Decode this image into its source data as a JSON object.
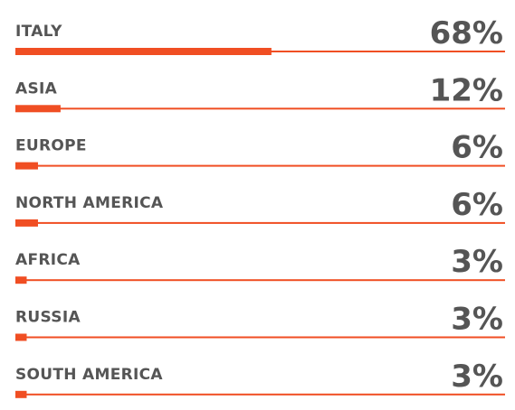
{
  "chart_data": {
    "type": "bar",
    "orientation": "horizontal",
    "categories": [
      "ITALY",
      "ASIA",
      "EUROPE",
      "NORTH AMERICA",
      "AFRICA",
      "RUSSIA",
      "SOUTH AMERICA"
    ],
    "values": [
      68,
      12,
      6,
      6,
      3,
      3,
      3
    ],
    "value_labels": [
      "68%",
      "12%",
      "6%",
      "6%",
      "3%",
      "3%",
      "3%"
    ],
    "color": "#f04e23"
  }
}
